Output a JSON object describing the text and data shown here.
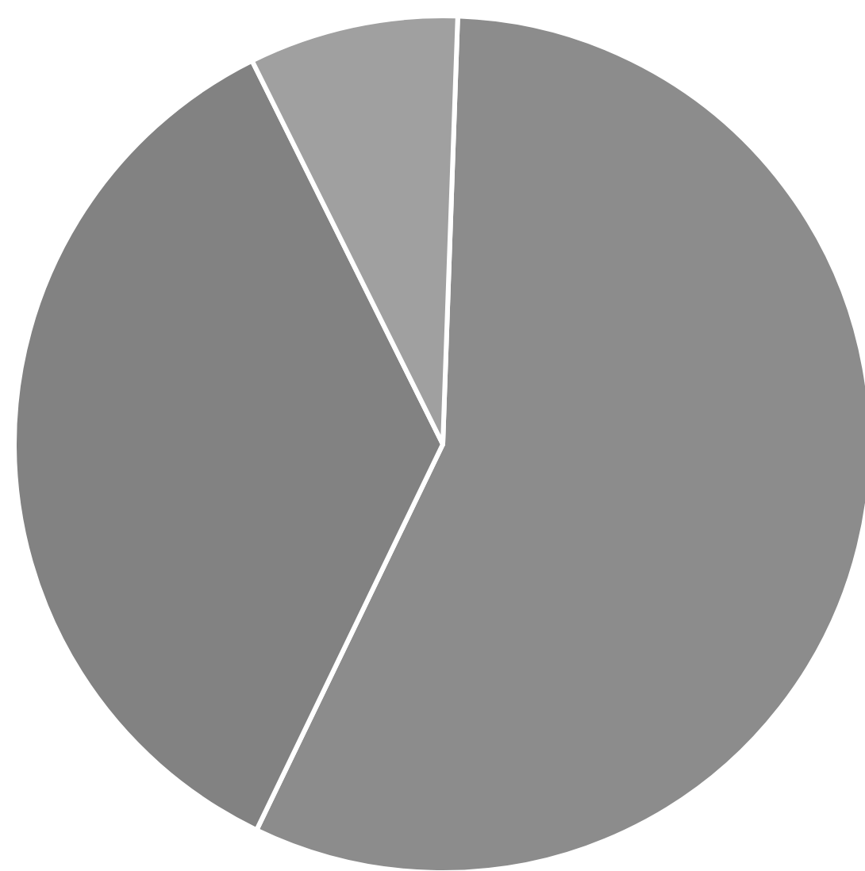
{
  "chart_data": {
    "type": "pie",
    "categories": [
      null,
      null,
      null
    ],
    "values": [
      56.6,
      35.5,
      7.9
    ],
    "colors": [
      "#8c8c8c",
      "#828282",
      "#a0a0a0"
    ]
  }
}
